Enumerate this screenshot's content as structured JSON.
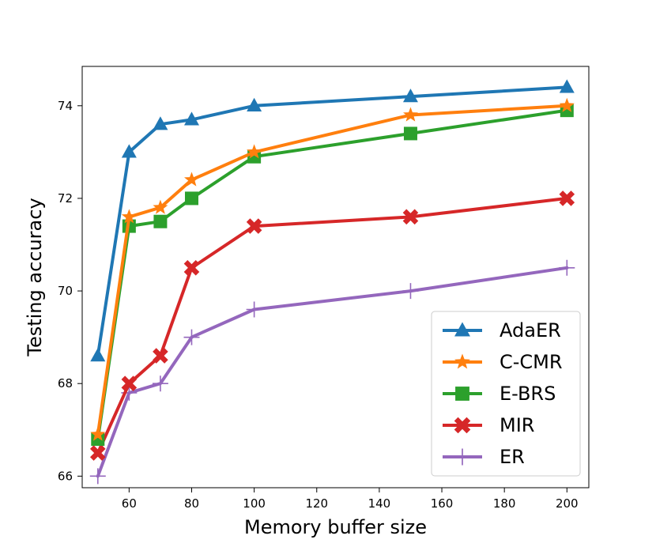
{
  "chart_data": {
    "type": "line",
    "title": "",
    "xlabel": "Memory buffer size",
    "ylabel": "Testing accuracy",
    "xlim": [
      45,
      207
    ],
    "ylim": [
      65.75,
      74.85
    ],
    "x": [
      50,
      60,
      70,
      80,
      100,
      150,
      200
    ],
    "xticks": [
      60,
      80,
      100,
      120,
      140,
      160,
      180,
      200
    ],
    "yticks": [
      66,
      68,
      70,
      72,
      74
    ],
    "grid": false,
    "legend_position": "lower-right",
    "series": [
      {
        "name": "AdaER",
        "color": "#1f77b4",
        "marker": "triangle",
        "values": [
          68.6,
          73.0,
          73.6,
          73.7,
          74.0,
          74.2,
          74.4
        ]
      },
      {
        "name": "C-CMR",
        "color": "#ff7f0e",
        "marker": "star",
        "values": [
          66.9,
          71.6,
          71.8,
          72.4,
          73.0,
          73.8,
          74.0
        ]
      },
      {
        "name": "E-BRS",
        "color": "#2ca02c",
        "marker": "square",
        "values": [
          66.8,
          71.4,
          71.5,
          72.0,
          72.9,
          73.4,
          73.9
        ]
      },
      {
        "name": "MIR",
        "color": "#d62728",
        "marker": "x",
        "values": [
          66.5,
          68.0,
          68.6,
          70.5,
          71.4,
          71.6,
          72.0
        ]
      },
      {
        "name": "ER",
        "color": "#9467bd",
        "marker": "plus",
        "values": [
          66.0,
          67.8,
          68.0,
          69.0,
          69.6,
          70.0,
          70.5
        ]
      }
    ]
  }
}
